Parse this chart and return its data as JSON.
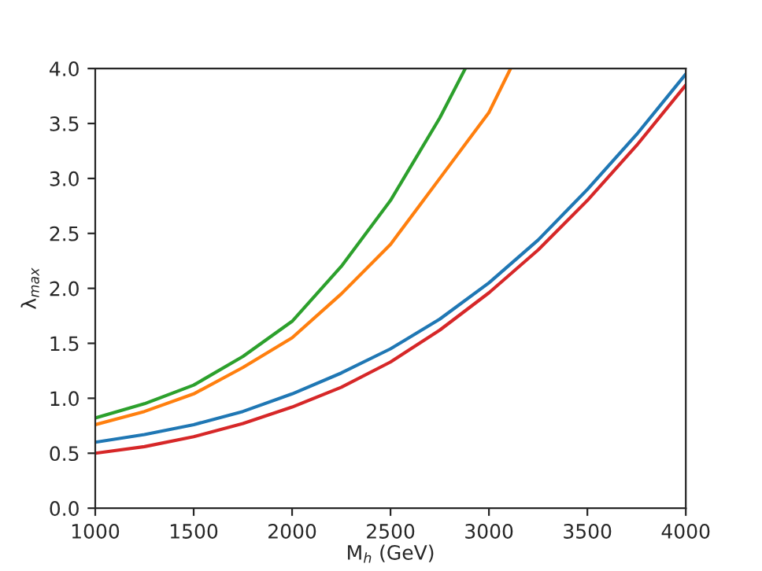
{
  "chart_data": {
    "type": "line",
    "xlabel": "M$_{h}$ (GeV)",
    "ylabel": "λ$_{max}$",
    "xlim": [
      1000,
      4000
    ],
    "xticks": [
      1000,
      1500,
      2000,
      2500,
      3000,
      3500,
      4000
    ],
    "ylim": [
      0.0,
      4.0
    ],
    "yticks": [
      {
        "value": 0,
        "label": "0.0"
      },
      {
        "value": 0.5,
        "label": "0.5"
      },
      {
        "value": 1,
        "label": "1.0"
      },
      {
        "value": 1.5,
        "label": "1.5"
      },
      {
        "value": 2,
        "label": "2.0"
      },
      {
        "value": 2.5,
        "label": "2.5"
      },
      {
        "value": 3,
        "label": "3.0"
      },
      {
        "value": 3.5,
        "label": "3.5"
      },
      {
        "value": 4,
        "label": "4.0"
      }
    ],
    "grid": false,
    "series": [
      {
        "color": "#1f77b4",
        "x": [
          1000,
          1250,
          1500,
          1750,
          2000,
          2250,
          2500,
          2750,
          3000,
          3250,
          3500,
          3750,
          4000
        ],
        "values": [
          0.6,
          0.67,
          0.76,
          0.88,
          1.04,
          1.23,
          1.45,
          1.72,
          2.05,
          2.44,
          2.9,
          3.4,
          3.95
        ]
      },
      {
        "color": "#ff7f0e",
        "x": [
          1000,
          1250,
          1500,
          1750,
          2000,
          2250,
          2500,
          2750,
          3000,
          3110
        ],
        "values": [
          0.76,
          0.88,
          1.04,
          1.28,
          1.55,
          1.95,
          2.4,
          3.0,
          3.6,
          4.0
        ]
      },
      {
        "color": "#2ca02c",
        "x": [
          1000,
          1250,
          1500,
          1750,
          2000,
          2250,
          2500,
          2750,
          2880
        ],
        "values": [
          0.82,
          0.95,
          1.12,
          1.38,
          1.7,
          2.2,
          2.8,
          3.55,
          4.0
        ]
      },
      {
        "color": "#d62728",
        "x": [
          1000,
          1250,
          1500,
          1750,
          2000,
          2250,
          2500,
          2750,
          3000,
          3250,
          3500,
          3750,
          4000
        ],
        "values": [
          0.5,
          0.56,
          0.65,
          0.77,
          0.92,
          1.1,
          1.33,
          1.62,
          1.96,
          2.35,
          2.8,
          3.3,
          3.85
        ]
      }
    ]
  }
}
